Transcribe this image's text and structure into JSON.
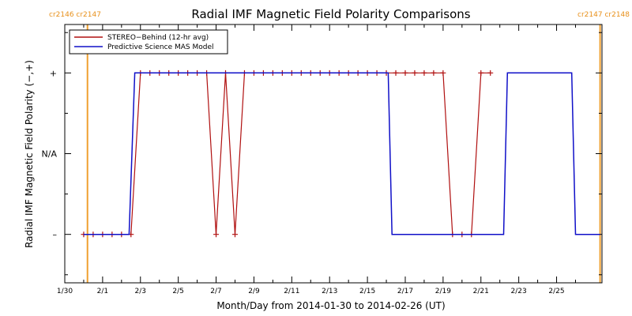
{
  "chart_data": {
    "type": "line",
    "title": "Radial IMF Magnetic Field Polarity Comparisons",
    "xlabel": "Month/Day from 2014-01-30 to 2014-02-26 (UT)",
    "ylabel": "Radial IMF Magnetic Field Polarity (−,+)",
    "x_unit": "days from 2014-01-30",
    "xlim": [
      0,
      28.4
    ],
    "ylim": [
      -1.6,
      1.6
    ],
    "x_ticks": [
      {
        "value": 0,
        "label": "1/30"
      },
      {
        "value": 2,
        "label": "2/1"
      },
      {
        "value": 4,
        "label": "2/3"
      },
      {
        "value": 6,
        "label": "2/5"
      },
      {
        "value": 8,
        "label": "2/7"
      },
      {
        "value": 10,
        "label": "2/9"
      },
      {
        "value": 12,
        "label": "2/11"
      },
      {
        "value": 14,
        "label": "2/13"
      },
      {
        "value": 16,
        "label": "2/15"
      },
      {
        "value": 18,
        "label": "2/17"
      },
      {
        "value": 20,
        "label": "2/19"
      },
      {
        "value": 22,
        "label": "2/21"
      },
      {
        "value": 24,
        "label": "2/23"
      },
      {
        "value": 26,
        "label": "2/25"
      }
    ],
    "y_ticks": [
      {
        "value": 1,
        "label": "+"
      },
      {
        "value": 0,
        "label": "N/A"
      },
      {
        "value": -1,
        "label": "–"
      }
    ],
    "carrington_markers": [
      {
        "x": 1.2,
        "left_label": "cr2146",
        "right_label": "cr2147"
      },
      {
        "x": 28.3,
        "left_label": "cr2147",
        "right_label": "cr2148"
      }
    ],
    "legend": {
      "position": "top-left"
    },
    "series": [
      {
        "name": "STEREO−Behind (12-hr avg)",
        "color": "#b01010",
        "style": "line+plus",
        "segments": [
          [
            [
              1.0,
              -1
            ],
            [
              1.5,
              -1
            ],
            [
              2.0,
              -1
            ],
            [
              2.5,
              -1
            ],
            [
              3.0,
              -1
            ],
            [
              3.5,
              -1
            ],
            [
              4.0,
              1
            ],
            [
              4.5,
              1
            ],
            [
              5.0,
              1
            ],
            [
              5.5,
              1
            ],
            [
              6.0,
              1
            ],
            [
              6.5,
              1
            ],
            [
              7.0,
              1
            ],
            [
              7.5,
              1
            ],
            [
              8.0,
              -1
            ],
            [
              8.5,
              1
            ],
            [
              9.0,
              -1
            ],
            [
              9.5,
              1
            ],
            [
              10.0,
              1
            ],
            [
              10.5,
              1
            ],
            [
              11.0,
              1
            ],
            [
              11.5,
              1
            ],
            [
              12.0,
              1
            ],
            [
              12.5,
              1
            ],
            [
              13.0,
              1
            ],
            [
              13.5,
              1
            ],
            [
              14.0,
              1
            ],
            [
              14.5,
              1
            ],
            [
              15.0,
              1
            ],
            [
              15.5,
              1
            ],
            [
              16.0,
              1
            ],
            [
              16.5,
              1
            ],
            [
              17.0,
              1
            ],
            [
              17.5,
              1
            ],
            [
              18.0,
              1
            ],
            [
              18.5,
              1
            ],
            [
              19.0,
              1
            ],
            [
              19.5,
              1
            ],
            [
              20.0,
              1
            ],
            [
              20.5,
              -1
            ],
            [
              21.0,
              -1
            ],
            [
              21.5,
              -1
            ],
            [
              22.0,
              1
            ],
            [
              22.5,
              1
            ]
          ]
        ]
      },
      {
        "name": "Predictive Science MAS Model",
        "color": "#1010c8",
        "style": "line",
        "segments": [
          [
            [
              1.0,
              -1
            ],
            [
              3.4,
              -1
            ],
            [
              3.7,
              1
            ],
            [
              17.1,
              1
            ],
            [
              17.3,
              -1
            ],
            [
              23.2,
              -1
            ],
            [
              23.4,
              1
            ],
            [
              26.8,
              1
            ],
            [
              27.0,
              -1
            ],
            [
              28.3,
              -1
            ]
          ]
        ]
      }
    ]
  }
}
